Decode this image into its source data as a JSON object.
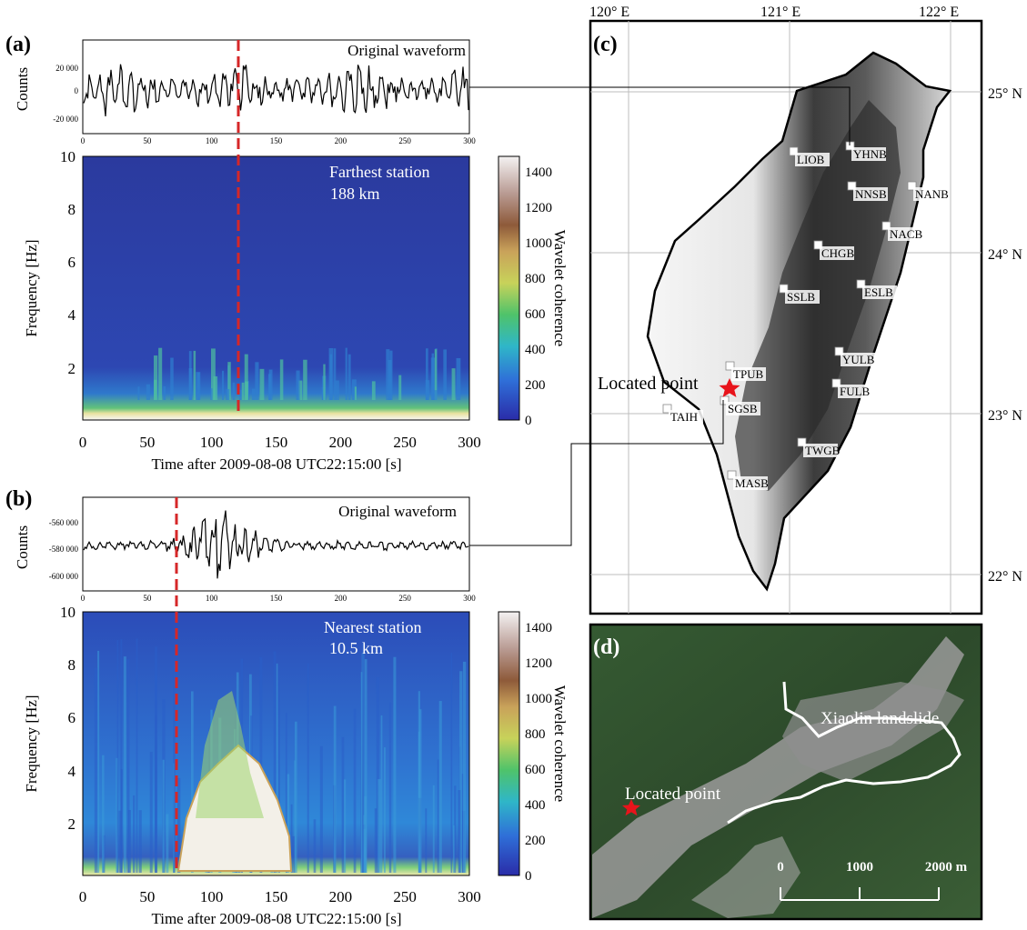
{
  "panel_a": {
    "label": "(a)",
    "waveform_title": "Original waveform",
    "waveform_ylabel": "Counts",
    "waveform_yticks": [
      "20 000",
      "0",
      "-20 000"
    ],
    "waveform_xticks": [
      "0",
      "50",
      "100",
      "150",
      "200",
      "250",
      "300"
    ],
    "station_text": "Farthest station",
    "distance_text": "188 km",
    "freq_ylabel": "Frequency [Hz]",
    "freq_yticks": [
      "10",
      "8",
      "6",
      "4",
      "2"
    ],
    "time_xticks": [
      "0",
      "50",
      "100",
      "150",
      "200",
      "250",
      "300"
    ],
    "time_xlabel": "Time after 2009-08-08 UTC22:15:00 [s]",
    "colorbar_label": "Wavelet coherence",
    "colorbar_ticks": [
      "1400",
      "1200",
      "1000",
      "800",
      "600",
      "400",
      "200",
      "0"
    ]
  },
  "panel_b": {
    "label": "(b)",
    "waveform_title": "Original waveform",
    "waveform_ylabel": "Counts",
    "waveform_yticks": [
      "-560 000",
      "-580 000",
      "-600 000"
    ],
    "waveform_xticks": [
      "0",
      "50",
      "100",
      "150",
      "200",
      "250",
      "300"
    ],
    "station_text": "Nearest station",
    "distance_text": "10.5 km",
    "freq_ylabel": "Frequency [Hz]",
    "freq_yticks": [
      "10",
      "8",
      "6",
      "4",
      "2"
    ],
    "time_xticks": [
      "0",
      "50",
      "100",
      "150",
      "200",
      "250",
      "300"
    ],
    "time_xlabel": "Time after 2009-08-08 UTC22:15:00 [s]",
    "colorbar_label": "Wavelet coherence",
    "colorbar_ticks": [
      "1400",
      "1200",
      "1000",
      "800",
      "600",
      "400",
      "200",
      "0"
    ]
  },
  "panel_c": {
    "label": "(c)",
    "lon_labels": [
      "120° E",
      "121° E",
      "122° E"
    ],
    "lat_labels": [
      "25° N",
      "24° N",
      "23° N",
      "22° N"
    ],
    "located_point": "Located point",
    "stations": [
      "YHNB",
      "LIOB",
      "NNSB",
      "NANB",
      "NACB",
      "CHGB",
      "ESLB",
      "SSLB",
      "YULB",
      "TPUB",
      "FULB",
      "SGSB",
      "TAIH",
      "TWGB",
      "MASB"
    ]
  },
  "panel_d": {
    "label": "(d)",
    "landslide_label": "Xiaolin landslide",
    "located_point": "Located point",
    "scale_ticks": [
      "0",
      "1000",
      "2000 m"
    ]
  },
  "colors": {
    "marker_line": "#d62728",
    "star": "#e8141b",
    "coherence_bg": "#2c3fb0"
  }
}
